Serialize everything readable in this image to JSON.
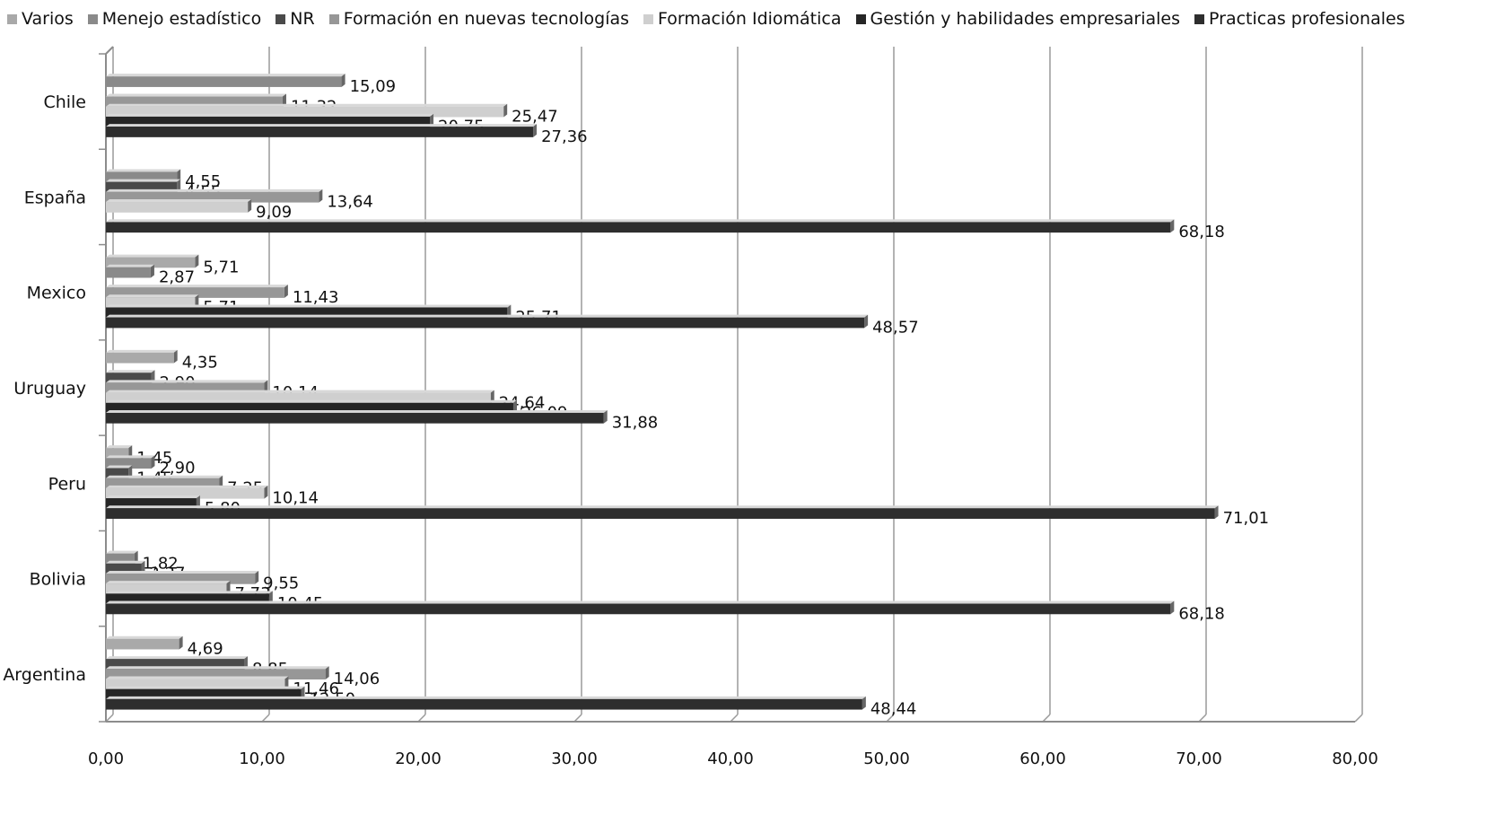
{
  "chart_data": {
    "type": "bar",
    "orientation": "horizontal",
    "categories": [
      "Chile",
      "España",
      "Mexico",
      "Uruguay",
      "Peru",
      "Bolivia",
      "Argentina"
    ],
    "xlim": [
      0,
      80
    ],
    "x_ticks": [
      "0,00",
      "10,00",
      "20,00",
      "30,00",
      "40,00",
      "50,00",
      "60,00",
      "70,00",
      "80,00"
    ],
    "grid": true,
    "legend_position": "top",
    "series": [
      {
        "name": "Varios",
        "color": "#a9a9a9",
        "values": [
          null,
          null,
          5.71,
          4.35,
          1.45,
          null,
          4.69
        ],
        "labels": [
          "",
          "",
          "5,71",
          "4,35",
          "1,45",
          "",
          "4,69"
        ]
      },
      {
        "name": "Menejo estadístico",
        "color": "#8a8a8a",
        "values": [
          15.09,
          4.55,
          2.87,
          null,
          2.9,
          1.82,
          null
        ],
        "labels": [
          "15,09",
          "4,55",
          "2,87",
          "",
          "2,90",
          "1,82",
          ""
        ]
      },
      {
        "name": "NR",
        "color": "#4a4a4a",
        "values": [
          null,
          4.55,
          null,
          2.9,
          1.45,
          2.27,
          8.85
        ],
        "labels": [
          "",
          "4,55",
          "",
          "2,90",
          "1,45",
          "2,27",
          "8,85"
        ]
      },
      {
        "name": "Formación en nuevas tecnologías",
        "color": "#979797",
        "values": [
          11.32,
          13.64,
          11.43,
          10.14,
          7.25,
          9.55,
          14.06
        ],
        "labels": [
          "11,32",
          "13,64",
          "11,43",
          "10,14",
          "7,25",
          "9,55",
          "14,06"
        ]
      },
      {
        "name": "Formación Idiomática",
        "color": "#cfcfcf",
        "values": [
          25.47,
          9.09,
          5.71,
          24.64,
          10.14,
          7.73,
          11.46
        ],
        "labels": [
          "25,47",
          "9,09",
          "5,71",
          "24,64",
          "10,14",
          "7,73",
          "11,46"
        ]
      },
      {
        "name": "Gestión y habilidades empresariales",
        "color": "#262626",
        "values": [
          20.75,
          null,
          25.71,
          26.09,
          5.8,
          10.45,
          12.5
        ],
        "labels": [
          "20,75",
          "",
          "25,71",
          "26,09",
          "5,80",
          "10,45",
          "12,50"
        ]
      },
      {
        "name": "Practicas profesionales",
        "color": "#2e2e2e",
        "values": [
          27.36,
          68.18,
          48.57,
          31.88,
          71.01,
          68.18,
          48.44
        ],
        "labels": [
          "27,36",
          "68,18",
          "48,57",
          "31,88",
          "71,01",
          "68,18",
          "48,44"
        ]
      }
    ]
  }
}
